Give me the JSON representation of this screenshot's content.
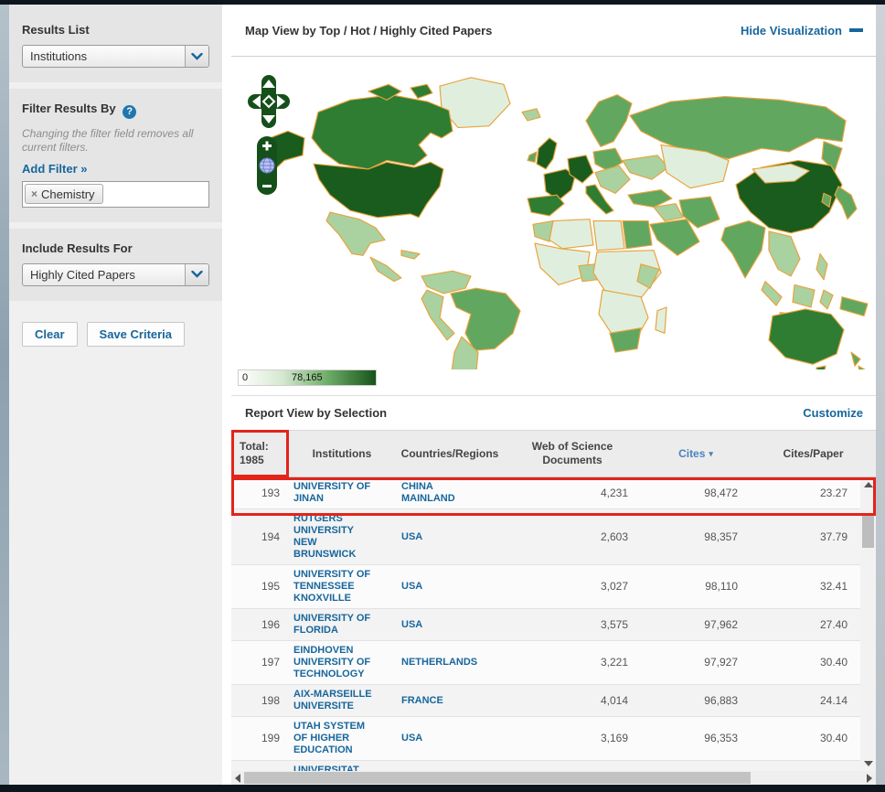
{
  "sidebar": {
    "results_list_label": "Results List",
    "results_list_value": "Institutions",
    "filter_label": "Filter Results By",
    "help_symbol": "?",
    "filter_note": "Changing the filter field removes all current filters.",
    "add_filter_label": "Add Filter »",
    "filter_tag": {
      "remove_symbol": "×",
      "label": "Chemistry"
    },
    "include_label": "Include Results For",
    "include_value": "Highly Cited Papers",
    "clear_button": "Clear",
    "save_button": "Save Criteria"
  },
  "map_section": {
    "title": "Map View by Top / Hot / Highly Cited Papers",
    "hide_link": "Hide Visualization",
    "legend": {
      "min": "0",
      "max": "78,165"
    },
    "controls": {
      "zoom_in": "+",
      "zoom_out": "−"
    },
    "choropleth": {
      "colors": {
        "g1": "#e0efdd",
        "g2": "#a9d2a0",
        "g3": "#61a75f",
        "g4": "#2e7d32",
        "g5": "#1a5c1e",
        "border": "#e8a33d"
      },
      "shading": {
        "darkest": [
          "USA",
          "China",
          "Germany",
          "United Kingdom",
          "France"
        ],
        "dark": [
          "Canada",
          "Australia",
          "Spain",
          "Italy"
        ],
        "medium": [
          "Russia",
          "Brazil",
          "India",
          "Japan",
          "Scandinavia",
          "Turkey",
          "Iran",
          "Saudi Arabia",
          "Egypt",
          "South Africa",
          "New Zealand",
          "South Korea",
          "Poland"
        ],
        "light": [
          "Mexico",
          "Argentina",
          "Peru",
          "Colombia",
          "Southeast Asia",
          "Indonesia",
          "Eastern Europe",
          "Nigeria",
          "Morocco"
        ],
        "lightest": [
          "Greenland",
          "Kazakhstan",
          "Mongolia",
          "most of Africa",
          "Madagascar"
        ]
      }
    }
  },
  "report_section": {
    "title": "Report View by Selection",
    "customize_link": "Customize",
    "table": {
      "columns": [
        "Total:\n1985",
        "Institutions",
        "Countries/Regions",
        "Web of Science\nDocuments",
        "Cites",
        "Cites/Paper"
      ],
      "sort_arrow": "▾",
      "rows": [
        {
          "rank": "193",
          "institution": "UNIVERSITY OF\nJINAN",
          "country": "CHINA\nMAINLAND",
          "docs": "4,231",
          "cites": "98,472",
          "cites_per_paper": "23.27",
          "highlighted": true
        },
        {
          "rank": "194",
          "institution": "RUTGERS\nUNIVERSITY\nNEW\nBRUNSWICK",
          "country": "USA",
          "docs": "2,603",
          "cites": "98,357",
          "cites_per_paper": "37.79"
        },
        {
          "rank": "195",
          "institution": "UNIVERSITY OF\nTENNESSEE\nKNOXVILLE",
          "country": "USA",
          "docs": "3,027",
          "cites": "98,110",
          "cites_per_paper": "32.41"
        },
        {
          "rank": "196",
          "institution": "UNIVERSITY OF\nFLORIDA",
          "country": "USA",
          "docs": "3,575",
          "cites": "97,962",
          "cites_per_paper": "27.40"
        },
        {
          "rank": "197",
          "institution": "EINDHOVEN\nUNIVERSITY OF\nTECHNOLOGY",
          "country": "NETHERLANDS",
          "docs": "3,221",
          "cites": "97,927",
          "cites_per_paper": "30.40"
        },
        {
          "rank": "198",
          "institution": "AIX-MARSEILLE\nUNIVERSITE",
          "country": "FRANCE",
          "docs": "4,014",
          "cites": "96,883",
          "cites_per_paper": "24.14"
        },
        {
          "rank": "199",
          "institution": "UTAH SYSTEM\nOF HIGHER\nEDUCATION",
          "country": "USA",
          "docs": "3,169",
          "cites": "96,353",
          "cites_per_paper": "30.40"
        },
        {
          "rank": "",
          "institution": "UNIVERSITAT",
          "country": "",
          "docs": "",
          "cites": "",
          "cites_per_paper": "",
          "partial": true
        }
      ]
    }
  }
}
